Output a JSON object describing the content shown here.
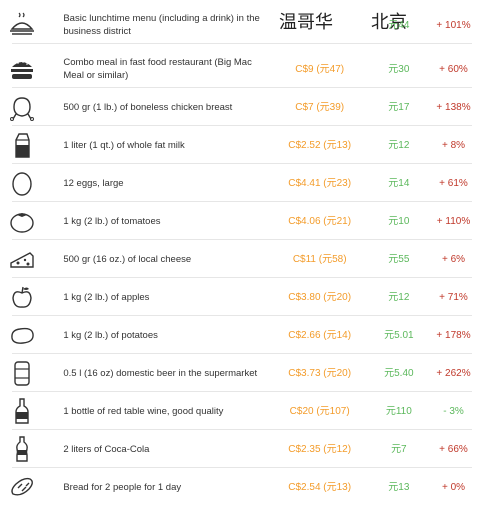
{
  "header": {
    "vancouver": "温哥华",
    "beijing": "北京"
  },
  "colors": {
    "vancouver_price": "#f39c2b",
    "beijing_price": "#5cb85c",
    "increase": "#c0392b",
    "decrease": "#5cb85c"
  },
  "rows": [
    {
      "icon": "lunch-tray-icon",
      "desc": "Basic lunchtime menu (including a drink) in the business district",
      "cad": "",
      "cny": "元44",
      "diff": "+ 101%"
    },
    {
      "icon": "burger-icon",
      "desc": "Combo meal in fast food restaurant (Big Mac Meal or similar)",
      "cad": "C$9 (元47)",
      "cny": "元30",
      "diff": "+ 60%"
    },
    {
      "icon": "chicken-icon",
      "desc": "500 gr (1 lb.) of boneless chicken breast",
      "cad": "C$7 (元39)",
      "cny": "元17",
      "diff": "+ 138%"
    },
    {
      "icon": "milk-carton-icon",
      "desc": "1 liter (1 qt.) of whole fat milk",
      "cad": "C$2.52 (元13)",
      "cny": "元12",
      "diff": "+ 8%"
    },
    {
      "icon": "egg-icon",
      "desc": "12 eggs, large",
      "cad": "C$4.41 (元23)",
      "cny": "元14",
      "diff": "+ 61%"
    },
    {
      "icon": "tomato-icon",
      "desc": "1 kg (2 lb.) of tomatoes",
      "cad": "C$4.06 (元21)",
      "cny": "元10",
      "diff": "+ 110%"
    },
    {
      "icon": "cheese-icon",
      "desc": "500 gr (16 oz.) of local cheese",
      "cad": "C$11 (元58)",
      "cny": "元55",
      "diff": "+ 6%"
    },
    {
      "icon": "apple-icon",
      "desc": "1 kg (2 lb.) of apples",
      "cad": "C$3.80 (元20)",
      "cny": "元12",
      "diff": "+ 71%"
    },
    {
      "icon": "potato-icon",
      "desc": "1 kg (2 lb.) of potatoes",
      "cad": "C$2.66 (元14)",
      "cny": "元5.01",
      "diff": "+ 178%"
    },
    {
      "icon": "beer-can-icon",
      "desc": "0.5 l (16 oz) domestic beer in the supermarket",
      "cad": "C$3.73 (元20)",
      "cny": "元5.40",
      "diff": "+ 262%"
    },
    {
      "icon": "wine-bottle-icon",
      "desc": "1 bottle of red table wine, good quality",
      "cad": "C$20 (元107)",
      "cny": "元110",
      "diff": "- 3%"
    },
    {
      "icon": "soda-bottle-icon",
      "desc": "2 liters of Coca-Cola",
      "cad": "C$2.35 (元12)",
      "cny": "元7",
      "diff": "+ 66%"
    },
    {
      "icon": "bread-icon",
      "desc": "Bread for 2 people for 1 day",
      "cad": "C$2.54 (元13)",
      "cny": "元13",
      "diff": "+ 0%"
    }
  ]
}
